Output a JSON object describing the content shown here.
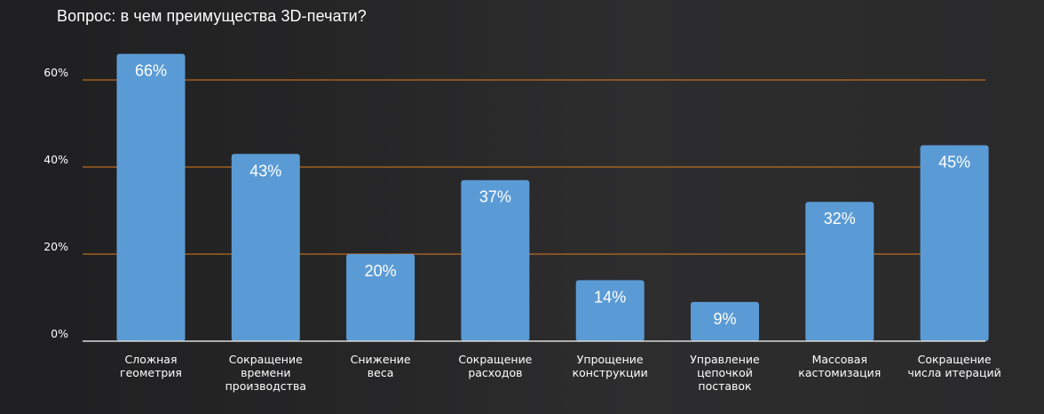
{
  "chart_data": {
    "type": "bar",
    "title": "Вопрос: в чем преимущества 3D-печати?",
    "xlabel": "",
    "ylabel": "",
    "ylim": [
      0,
      70
    ],
    "yticks": [
      0,
      20,
      40,
      60
    ],
    "ytick_labels": [
      "0%",
      "20%",
      "40%",
      "60%"
    ],
    "grid": true,
    "categories": [
      [
        "Сложная",
        "геометрия"
      ],
      [
        "Сокращение",
        "времени",
        "производства"
      ],
      [
        "Снижение",
        "веса"
      ],
      [
        "Сокращение",
        "расходов"
      ],
      [
        "Упрощение",
        "конструкции"
      ],
      [
        "Управление",
        "цепочкой",
        "поставок"
      ],
      [
        "Массовая",
        "кастомизация"
      ],
      [
        "Сокращение",
        "числа итераций"
      ]
    ],
    "values": [
      66,
      43,
      20,
      37,
      14,
      9,
      32,
      45
    ],
    "data_labels": [
      "66%",
      "43%",
      "20%",
      "37%",
      "14%",
      "9%",
      "32%",
      "45%"
    ],
    "colors": {
      "bar": "#5b9bd5",
      "grid": "#e07b1e",
      "axis": "#d9d9d9",
      "text": "#ffffff"
    }
  }
}
